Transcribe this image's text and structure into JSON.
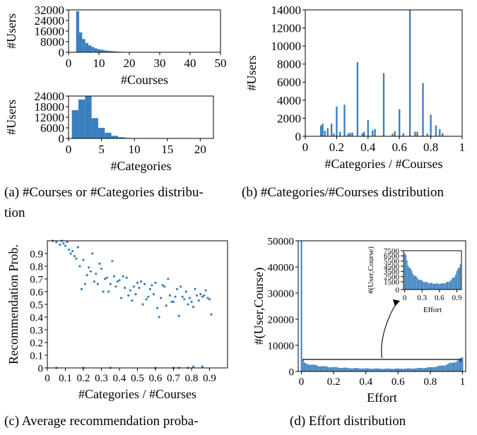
{
  "colors": {
    "bar": "#3b7fbf",
    "axis": "#000000"
  },
  "captions": {
    "a_line1": "(a)  #Courses or #Categories distribu-",
    "a_line2": "tion",
    "b": "(b)  #Categories/#Courses distribution",
    "c": "(c)   Average  recommendation  proba-",
    "d": "(d)  Effort distribution"
  },
  "chart_data": [
    {
      "id": "a_top",
      "type": "bar",
      "xlabel": "#Courses",
      "ylabel": "#Users",
      "xlim": [
        0,
        50
      ],
      "ylim": [
        0,
        32000
      ],
      "xticks": [
        0,
        10,
        20,
        30,
        40,
        50
      ],
      "yticks": [
        0,
        8000,
        16000,
        24000,
        32000
      ],
      "bin_width": 1,
      "x": [
        3,
        4,
        5,
        6,
        7,
        8,
        9,
        10,
        11,
        12,
        13,
        14,
        15,
        16,
        17
      ],
      "values": [
        31000,
        15000,
        10000,
        7000,
        5200,
        4000,
        3000,
        2300,
        1900,
        1400,
        1100,
        900,
        700,
        500,
        400
      ]
    },
    {
      "id": "a_bottom",
      "type": "bar",
      "xlabel": "#Categories",
      "ylabel": "#Users",
      "xlim": [
        0,
        22
      ],
      "ylim": [
        0,
        24000
      ],
      "xticks": [
        0,
        5,
        10,
        15,
        20
      ],
      "yticks": [
        0,
        6000,
        12000,
        18000,
        24000
      ],
      "bin_width": 1,
      "x": [
        1,
        2,
        3,
        4,
        5,
        6,
        7,
        8,
        9,
        10
      ],
      "values": [
        16000,
        22000,
        24000,
        11500,
        6000,
        3200,
        1500,
        700,
        300,
        150
      ]
    },
    {
      "id": "b",
      "type": "bar",
      "xlabel": "#Categories / #Courses",
      "ylabel": "#Users",
      "xlim": [
        0,
        1
      ],
      "ylim": [
        0,
        14000
      ],
      "xticks": [
        0.0,
        0.2,
        0.4,
        0.6,
        0.8,
        1.0
      ],
      "yticks": [
        0,
        2000,
        4000,
        6000,
        8000,
        10000,
        12000,
        14000
      ],
      "bin_width": 0.016,
      "x": [
        0.1,
        0.111,
        0.125,
        0.143,
        0.167,
        0.182,
        0.2,
        0.222,
        0.25,
        0.273,
        0.286,
        0.3,
        0.333,
        0.364,
        0.375,
        0.4,
        0.429,
        0.444,
        0.5,
        0.556,
        0.571,
        0.6,
        0.625,
        0.667,
        0.7,
        0.714,
        0.75,
        0.778,
        0.8,
        0.833,
        0.857,
        0.875
      ],
      "values": [
        1200,
        1400,
        600,
        900,
        1400,
        300,
        3300,
        500,
        3500,
        300,
        400,
        400,
        8200,
        350,
        500,
        1800,
        650,
        800,
        7000,
        300,
        550,
        3000,
        350,
        14000,
        500,
        500,
        5900,
        300,
        2400,
        1200,
        800,
        350
      ]
    },
    {
      "id": "c",
      "type": "scatter",
      "xlabel": "#Categories / #Courses",
      "ylabel": "Recommendation Prob.",
      "xlim": [
        0,
        1
      ],
      "ylim": [
        0,
        1
      ],
      "xticks": [
        0.0,
        0.1,
        0.2,
        0.3,
        0.4,
        0.5,
        0.6,
        0.7,
        0.8,
        0.9
      ],
      "yticks": [
        0.0,
        0.1,
        0.2,
        0.3,
        0.4,
        0.5,
        0.6,
        0.7,
        0.8,
        0.9
      ],
      "x": [
        0.03,
        0.05,
        0.07,
        0.08,
        0.09,
        0.1,
        0.11,
        0.12,
        0.13,
        0.14,
        0.15,
        0.16,
        0.17,
        0.18,
        0.19,
        0.2,
        0.21,
        0.22,
        0.23,
        0.24,
        0.25,
        0.26,
        0.27,
        0.28,
        0.29,
        0.3,
        0.31,
        0.32,
        0.33,
        0.34,
        0.35,
        0.36,
        0.37,
        0.38,
        0.39,
        0.4,
        0.41,
        0.42,
        0.43,
        0.44,
        0.45,
        0.46,
        0.47,
        0.48,
        0.49,
        0.5,
        0.51,
        0.52,
        0.53,
        0.54,
        0.55,
        0.56,
        0.57,
        0.58,
        0.59,
        0.6,
        0.61,
        0.62,
        0.63,
        0.64,
        0.65,
        0.66,
        0.67,
        0.68,
        0.69,
        0.7,
        0.71,
        0.72,
        0.73,
        0.74,
        0.75,
        0.76,
        0.77,
        0.78,
        0.79,
        0.8,
        0.81,
        0.82,
        0.83,
        0.84,
        0.85,
        0.86,
        0.87,
        0.88,
        0.89,
        0.9,
        0.91,
        0.05,
        0.2,
        0.35,
        0.6,
        0.7,
        0.73,
        0.78,
        0.81,
        0.86
      ],
      "y": [
        1.0,
        0.99,
        0.97,
        1.0,
        0.98,
        0.96,
        0.99,
        0.93,
        0.9,
        0.92,
        0.88,
        0.86,
        0.95,
        0.8,
        0.62,
        0.85,
        0.66,
        0.73,
        0.79,
        0.76,
        0.9,
        0.68,
        0.74,
        0.66,
        0.82,
        0.78,
        0.6,
        0.7,
        0.71,
        0.6,
        0.66,
        0.84,
        0.72,
        0.64,
        0.68,
        0.69,
        0.55,
        0.72,
        0.63,
        0.71,
        0.57,
        0.61,
        0.53,
        0.64,
        0.58,
        0.67,
        0.63,
        0.68,
        0.5,
        0.66,
        0.54,
        0.56,
        0.62,
        0.65,
        0.58,
        0.67,
        0.47,
        0.4,
        0.55,
        0.65,
        0.64,
        0.49,
        0.7,
        0.57,
        0.52,
        0.52,
        0.56,
        0.62,
        0.41,
        0.64,
        0.56,
        0.54,
        0.6,
        0.5,
        0.55,
        0.52,
        0.48,
        0.62,
        0.57,
        0.53,
        0.58,
        0.56,
        0.57,
        0.61,
        0.55,
        0.54,
        0.42,
        0.0,
        0.0,
        0.0,
        0.0,
        0.0,
        0.0,
        0.0,
        0.01,
        0.01
      ]
    },
    {
      "id": "d",
      "type": "bar",
      "xlabel": "Effort",
      "ylabel": "#(User,Course)",
      "xlim": [
        -0.02,
        1.02
      ],
      "ylim": [
        0,
        50000
      ],
      "xticks": [
        0.0,
        0.2,
        0.4,
        0.6,
        0.8,
        1.0
      ],
      "yticks": [
        0,
        10000,
        20000,
        30000,
        40000,
        50000
      ],
      "bin_width": 0.01,
      "first_bar": {
        "x": 0.0,
        "value": 50000
      },
      "curve": {
        "start": 3500,
        "min": 1000,
        "end": 5200
      },
      "annotation": {
        "from_x": 0.5,
        "to": "inset"
      }
    },
    {
      "id": "d_inset",
      "type": "bar",
      "xlabel": "Effort",
      "ylabel": "#(User,Course)",
      "xlim": [
        -0.02,
        0.98
      ],
      "ylim": [
        0,
        7500
      ],
      "xticks": [
        0.0,
        0.3,
        0.6,
        0.9
      ],
      "yticks": [
        0,
        1500,
        2500,
        3500,
        4500,
        5500,
        6500,
        7500
      ],
      "bin_width": 0.02,
      "curve": {
        "start": 7100,
        "min": 1000,
        "end": 5200
      }
    }
  ]
}
